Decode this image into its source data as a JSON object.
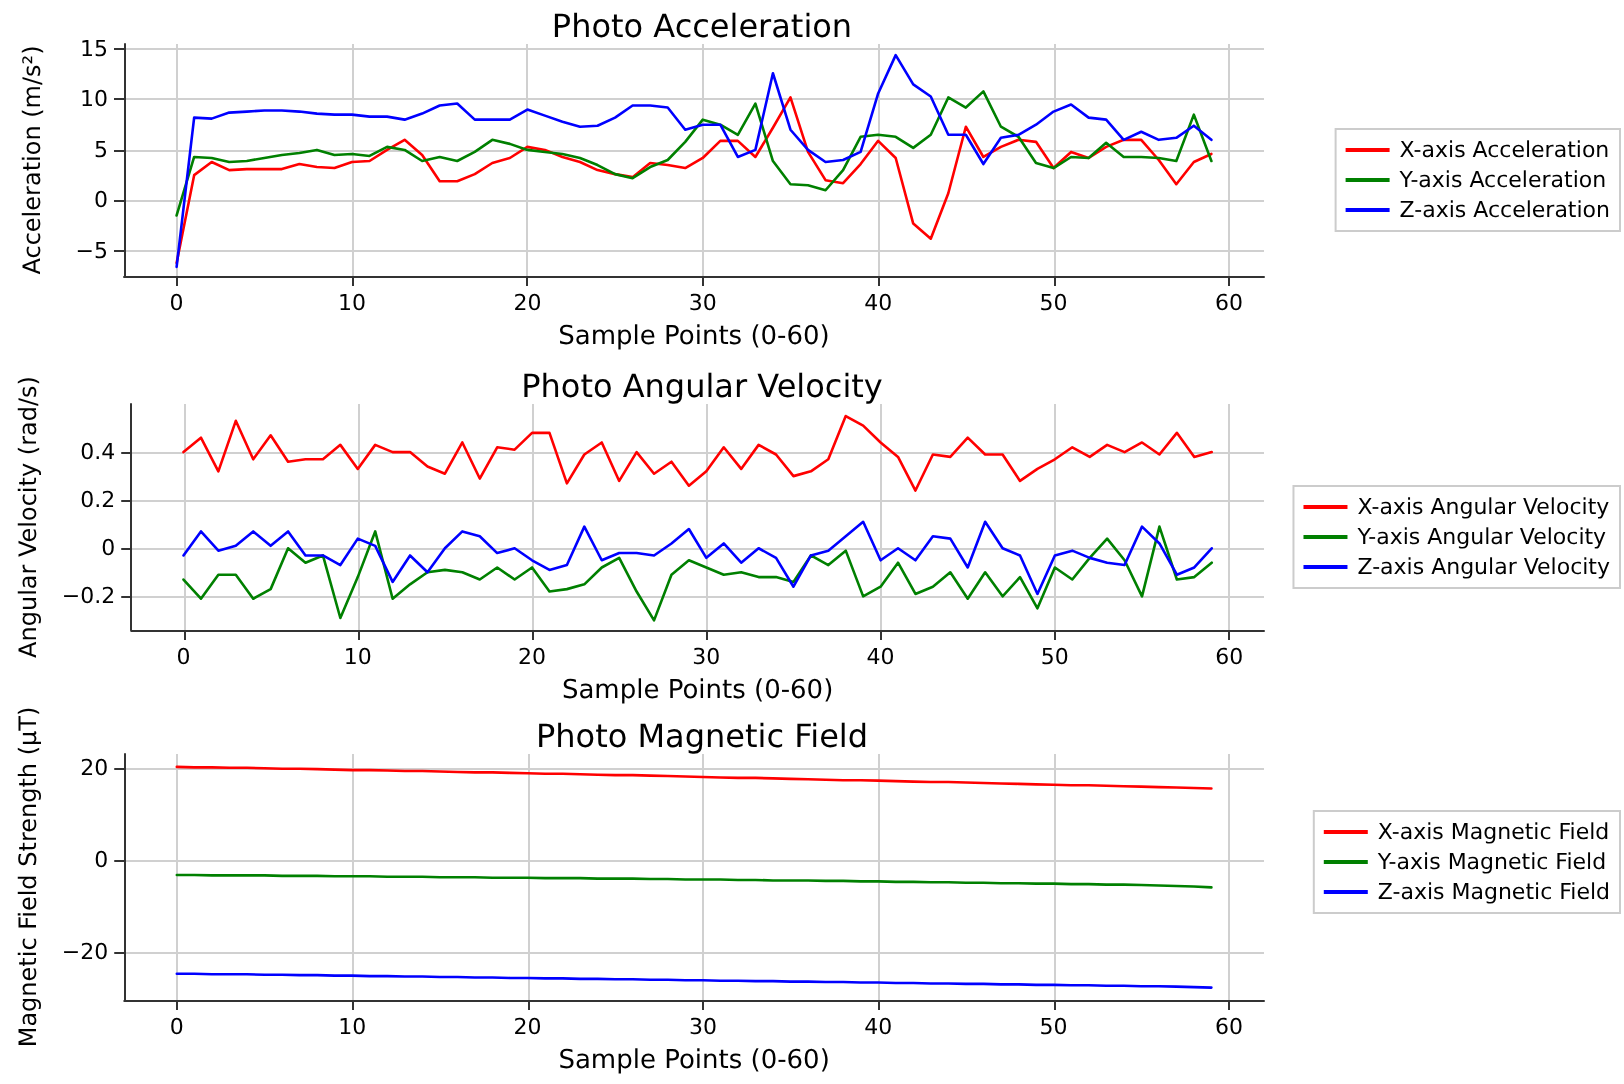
{
  "chart_data": [
    {
      "type": "line",
      "title": "Photo Acceleration",
      "xlabel": "Sample Points (0-60)",
      "ylabel": "Acceleration (m/s²)",
      "x": [
        0,
        1,
        2,
        3,
        4,
        5,
        6,
        7,
        8,
        9,
        10,
        11,
        12,
        13,
        14,
        15,
        16,
        17,
        18,
        19,
        20,
        21,
        22,
        23,
        24,
        25,
        26,
        27,
        28,
        29,
        30,
        31,
        32,
        33,
        34,
        35,
        36,
        37,
        38,
        39,
        40,
        41,
        42,
        43,
        44,
        45,
        46,
        47,
        48,
        49,
        50,
        51,
        52,
        53,
        54,
        55,
        56,
        57,
        58,
        59
      ],
      "xlim": [
        -3,
        62
      ],
      "xticks": [
        0,
        10,
        20,
        30,
        40,
        50,
        60
      ],
      "ylim": [
        -7.5,
        15.5
      ],
      "yticks": [
        -5,
        0,
        5,
        10,
        15
      ],
      "grid": true,
      "legend": "right",
      "series": [
        {
          "name": "X-axis Acceleration",
          "color": "#ff0000",
          "values": [
            -6.2,
            2.5,
            3.8,
            3.0,
            3.1,
            3.1,
            3.1,
            3.6,
            3.3,
            3.2,
            3.8,
            3.9,
            5.0,
            6.0,
            4.5,
            1.9,
            1.9,
            2.6,
            3.7,
            4.2,
            5.3,
            5.0,
            4.3,
            3.8,
            3.0,
            2.6,
            2.3,
            3.7,
            3.5,
            3.2,
            4.2,
            5.9,
            5.9,
            4.3,
            7.2,
            10.2,
            4.8,
            2.0,
            1.7,
            3.6,
            5.9,
            4.2,
            -2.3,
            -3.8,
            0.7,
            7.3,
            4.3,
            5.3,
            6.0,
            5.8,
            3.2,
            4.8,
            4.2,
            5.3,
            6.0,
            6.0,
            4.0,
            1.6,
            3.8,
            4.6
          ]
        },
        {
          "name": "Y-axis Acceleration",
          "color": "#008000",
          "values": [
            -1.5,
            4.3,
            4.2,
            3.8,
            3.9,
            4.2,
            4.5,
            4.7,
            5.0,
            4.5,
            4.6,
            4.4,
            5.3,
            5.0,
            3.9,
            4.3,
            3.9,
            4.8,
            6.0,
            5.6,
            5.0,
            4.8,
            4.6,
            4.2,
            3.5,
            2.6,
            2.2,
            3.3,
            4.0,
            5.8,
            8.0,
            7.5,
            6.5,
            9.6,
            3.9,
            1.6,
            1.5,
            1.0,
            3.0,
            6.3,
            6.5,
            6.3,
            5.2,
            6.5,
            10.2,
            9.2,
            10.8,
            7.3,
            6.3,
            3.7,
            3.2,
            4.3,
            4.2,
            5.7,
            4.3,
            4.3,
            4.2,
            3.9,
            8.5,
            3.9
          ]
        },
        {
          "name": "Z-axis Acceleration",
          "color": "#0000ff",
          "values": [
            -6.6,
            8.2,
            8.1,
            8.7,
            8.8,
            8.9,
            8.9,
            8.8,
            8.6,
            8.5,
            8.5,
            8.3,
            8.3,
            8.0,
            8.6,
            9.4,
            9.6,
            8.0,
            8.0,
            8.0,
            9.0,
            8.4,
            7.8,
            7.3,
            7.4,
            8.2,
            9.4,
            9.4,
            9.2,
            7.0,
            7.5,
            7.5,
            4.3,
            5.0,
            12.6,
            7.0,
            5.0,
            3.8,
            4.0,
            4.8,
            10.6,
            14.4,
            11.5,
            10.3,
            6.5,
            6.5,
            3.6,
            6.2,
            6.5,
            7.5,
            8.8,
            9.5,
            8.2,
            8.0,
            6.0,
            6.8,
            6.0,
            6.2,
            7.4,
            6.0
          ]
        }
      ]
    },
    {
      "type": "line",
      "title": "Photo Angular Velocity",
      "xlabel": "Sample Points (0-60)",
      "ylabel": "Angular Velocity (rad/s)",
      "x": [
        0,
        1,
        2,
        3,
        4,
        5,
        6,
        7,
        8,
        9,
        10,
        11,
        12,
        13,
        14,
        15,
        16,
        17,
        18,
        19,
        20,
        21,
        22,
        23,
        24,
        25,
        26,
        27,
        28,
        29,
        30,
        31,
        32,
        33,
        34,
        35,
        36,
        37,
        38,
        39,
        40,
        41,
        42,
        43,
        44,
        45,
        46,
        47,
        48,
        49,
        50,
        51,
        52,
        53,
        54,
        55,
        56,
        57,
        58,
        59
      ],
      "xlim": [
        -3,
        62
      ],
      "xticks": [
        0,
        10,
        20,
        30,
        40,
        50,
        60
      ],
      "ylim": [
        -0.34,
        0.6
      ],
      "yticks": [
        -0.2,
        0.0,
        0.2,
        0.4
      ],
      "grid": true,
      "legend": "right",
      "series": [
        {
          "name": "X-axis Angular Velocity",
          "color": "#ff0000",
          "values": [
            0.4,
            0.46,
            0.32,
            0.53,
            0.37,
            0.47,
            0.36,
            0.37,
            0.37,
            0.43,
            0.33,
            0.43,
            0.4,
            0.4,
            0.34,
            0.31,
            0.44,
            0.29,
            0.42,
            0.41,
            0.48,
            0.48,
            0.27,
            0.39,
            0.44,
            0.28,
            0.4,
            0.31,
            0.36,
            0.26,
            0.32,
            0.42,
            0.33,
            0.43,
            0.39,
            0.3,
            0.32,
            0.37,
            0.55,
            0.51,
            0.44,
            0.38,
            0.24,
            0.39,
            0.38,
            0.46,
            0.39,
            0.39,
            0.28,
            0.33,
            0.37,
            0.42,
            0.38,
            0.43,
            0.4,
            0.44,
            0.39,
            0.48,
            0.38,
            0.4
          ]
        },
        {
          "name": "Y-axis Angular Velocity",
          "color": "#008000",
          "values": [
            -0.13,
            -0.21,
            -0.11,
            -0.11,
            -0.21,
            -0.17,
            0.0,
            -0.06,
            -0.03,
            -0.29,
            -0.12,
            0.07,
            -0.21,
            -0.15,
            -0.1,
            -0.09,
            -0.1,
            -0.13,
            -0.08,
            -0.13,
            -0.08,
            -0.18,
            -0.17,
            -0.15,
            -0.08,
            -0.04,
            -0.18,
            -0.3,
            -0.11,
            -0.05,
            -0.08,
            -0.11,
            -0.1,
            -0.12,
            -0.12,
            -0.14,
            -0.03,
            -0.07,
            -0.01,
            -0.2,
            -0.16,
            -0.06,
            -0.19,
            -0.16,
            -0.1,
            -0.21,
            -0.1,
            -0.2,
            -0.12,
            -0.25,
            -0.08,
            -0.13,
            -0.04,
            0.04,
            -0.05,
            -0.2,
            0.09,
            -0.13,
            -0.12,
            -0.06
          ]
        },
        {
          "name": "Z-axis Angular Velocity",
          "color": "#0000ff",
          "values": [
            -0.03,
            0.07,
            -0.01,
            0.01,
            0.07,
            0.01,
            0.07,
            -0.03,
            -0.03,
            -0.07,
            0.04,
            0.01,
            -0.14,
            -0.03,
            -0.1,
            0.0,
            0.07,
            0.05,
            -0.02,
            0.0,
            -0.05,
            -0.09,
            -0.07,
            0.09,
            -0.05,
            -0.02,
            -0.02,
            -0.03,
            0.02,
            0.08,
            -0.04,
            0.02,
            -0.06,
            0.0,
            -0.04,
            -0.16,
            -0.03,
            -0.01,
            0.05,
            0.11,
            -0.05,
            0.0,
            -0.05,
            0.05,
            0.04,
            -0.08,
            0.11,
            0.0,
            -0.03,
            -0.19,
            -0.03,
            -0.01,
            -0.04,
            -0.06,
            -0.07,
            0.09,
            0.02,
            -0.11,
            -0.08,
            0.0
          ]
        }
      ]
    },
    {
      "type": "line",
      "title": "Photo Magnetic Field",
      "xlabel": "Sample Points (0-60)",
      "ylabel": "Magnetic Field Strength (μT)",
      "x": [
        0,
        1,
        2,
        3,
        4,
        5,
        6,
        7,
        8,
        9,
        10,
        11,
        12,
        13,
        14,
        15,
        16,
        17,
        18,
        19,
        20,
        21,
        22,
        23,
        24,
        25,
        26,
        27,
        28,
        29,
        30,
        31,
        32,
        33,
        34,
        35,
        36,
        37,
        38,
        39,
        40,
        41,
        42,
        43,
        44,
        45,
        46,
        47,
        48,
        49,
        50,
        51,
        52,
        53,
        54,
        55,
        56,
        57,
        58,
        59
      ],
      "xlim": [
        -3,
        62
      ],
      "xticks": [
        0,
        10,
        20,
        30,
        40,
        50,
        60
      ],
      "ylim": [
        -30.5,
        23
      ],
      "yticks": [
        -20,
        0,
        20
      ],
      "grid": true,
      "legend": "right",
      "series": [
        {
          "name": "X-axis Magnetic Field",
          "color": "#ff0000",
          "values": [
            20.2,
            20.1,
            20.1,
            20.0,
            20.0,
            19.9,
            19.8,
            19.8,
            19.7,
            19.6,
            19.5,
            19.5,
            19.4,
            19.3,
            19.3,
            19.2,
            19.1,
            19.0,
            19.0,
            18.9,
            18.8,
            18.7,
            18.7,
            18.6,
            18.5,
            18.4,
            18.4,
            18.3,
            18.2,
            18.1,
            18.0,
            17.9,
            17.8,
            17.8,
            17.7,
            17.6,
            17.5,
            17.4,
            17.3,
            17.3,
            17.2,
            17.1,
            17.0,
            16.9,
            16.9,
            16.8,
            16.7,
            16.6,
            16.5,
            16.4,
            16.3,
            16.2,
            16.2,
            16.1,
            16.0,
            15.9,
            15.8,
            15.7,
            15.6,
            15.5
          ]
        },
        {
          "name": "Y-axis Magnetic Field",
          "color": "#008000",
          "values": [
            -3.3,
            -3.3,
            -3.4,
            -3.4,
            -3.4,
            -3.4,
            -3.5,
            -3.5,
            -3.5,
            -3.6,
            -3.6,
            -3.6,
            -3.7,
            -3.7,
            -3.7,
            -3.8,
            -3.8,
            -3.8,
            -3.9,
            -3.9,
            -3.9,
            -4.0,
            -4.0,
            -4.0,
            -4.1,
            -4.1,
            -4.1,
            -4.2,
            -4.2,
            -4.3,
            -4.3,
            -4.3,
            -4.4,
            -4.4,
            -4.5,
            -4.5,
            -4.5,
            -4.6,
            -4.6,
            -4.7,
            -4.7,
            -4.8,
            -4.8,
            -4.9,
            -4.9,
            -5.0,
            -5.0,
            -5.1,
            -5.1,
            -5.2,
            -5.2,
            -5.3,
            -5.3,
            -5.4,
            -5.4,
            -5.5,
            -5.6,
            -5.7,
            -5.8,
            -6.0
          ]
        },
        {
          "name": "Z-axis Magnetic Field",
          "color": "#0000ff",
          "values": [
            -24.8,
            -24.8,
            -24.9,
            -24.9,
            -24.9,
            -25.0,
            -25.0,
            -25.1,
            -25.1,
            -25.2,
            -25.2,
            -25.3,
            -25.3,
            -25.4,
            -25.4,
            -25.5,
            -25.5,
            -25.6,
            -25.6,
            -25.7,
            -25.7,
            -25.8,
            -25.8,
            -25.9,
            -25.9,
            -26.0,
            -26.0,
            -26.1,
            -26.1,
            -26.2,
            -26.2,
            -26.3,
            -26.3,
            -26.4,
            -26.4,
            -26.5,
            -26.5,
            -26.6,
            -26.6,
            -26.7,
            -26.7,
            -26.8,
            -26.8,
            -26.9,
            -26.9,
            -27.0,
            -27.0,
            -27.1,
            -27.1,
            -27.2,
            -27.2,
            -27.3,
            -27.3,
            -27.4,
            -27.4,
            -27.5,
            -27.5,
            -27.6,
            -27.7,
            -27.8
          ]
        }
      ]
    }
  ]
}
